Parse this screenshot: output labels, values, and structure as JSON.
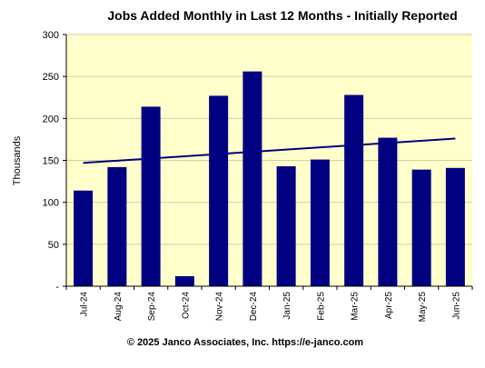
{
  "chart_data": {
    "type": "bar",
    "title": "Jobs Added Monthly in Last 12 Months - Initially Reported",
    "ylabel": "Thousands",
    "xlabel": "",
    "categories": [
      "Jul-24",
      "Aug-24",
      "Sep-24",
      "Oct-24",
      "Nov-24",
      "Dec-24",
      "Jan-25",
      "Feb-25",
      "Mar-25",
      "Apr-25",
      "May-25",
      "Jun-25"
    ],
    "values": [
      114,
      142,
      214,
      12,
      227,
      256,
      143,
      151,
      228,
      177,
      139,
      141
    ],
    "ylim": [
      0,
      300
    ],
    "yticks": [
      0,
      50,
      100,
      150,
      200,
      250,
      300
    ],
    "ytick_labels": [
      "-",
      "50",
      "100",
      "150",
      "200",
      "250",
      "300"
    ],
    "trendline": {
      "start": 147,
      "end": 176
    },
    "grid": true,
    "legend": "none",
    "colors": {
      "bar": "#000080",
      "trend": "#000080",
      "plot_bg": "#ffffcc",
      "grid": "#cfcfa8"
    },
    "credit": "© 2025 Janco Associates, Inc.  https://e-janco.com"
  }
}
